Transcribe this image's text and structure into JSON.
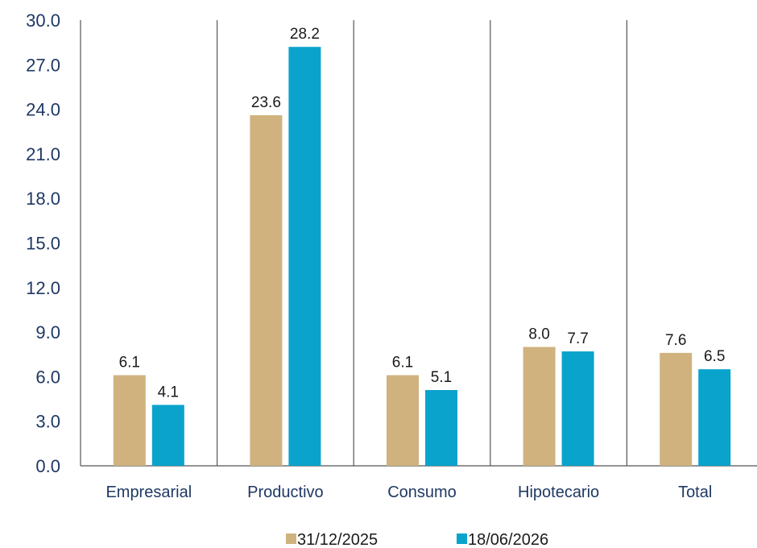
{
  "chart_data": {
    "type": "bar",
    "categories": [
      "Empresarial",
      "Productivo",
      "Consumo",
      "Hipotecario",
      "Total"
    ],
    "series": [
      {
        "name": "31/12/2025",
        "values": [
          6.1,
          23.6,
          6.1,
          8.0,
          7.6
        ],
        "color": "#cfb27e"
      },
      {
        "name": "18/06/2026",
        "values": [
          4.1,
          28.2,
          5.1,
          7.7,
          6.5
        ],
        "color": "#0aa3cc"
      }
    ],
    "ylim": [
      0,
      30
    ],
    "yticks": [
      "0.0",
      "3.0",
      "6.0",
      "9.0",
      "12.0",
      "15.0",
      "18.0",
      "21.0",
      "24.0",
      "27.0",
      "30.0"
    ],
    "legend_position": "bottom",
    "separators": "vertical lines between categories",
    "grid": false
  }
}
